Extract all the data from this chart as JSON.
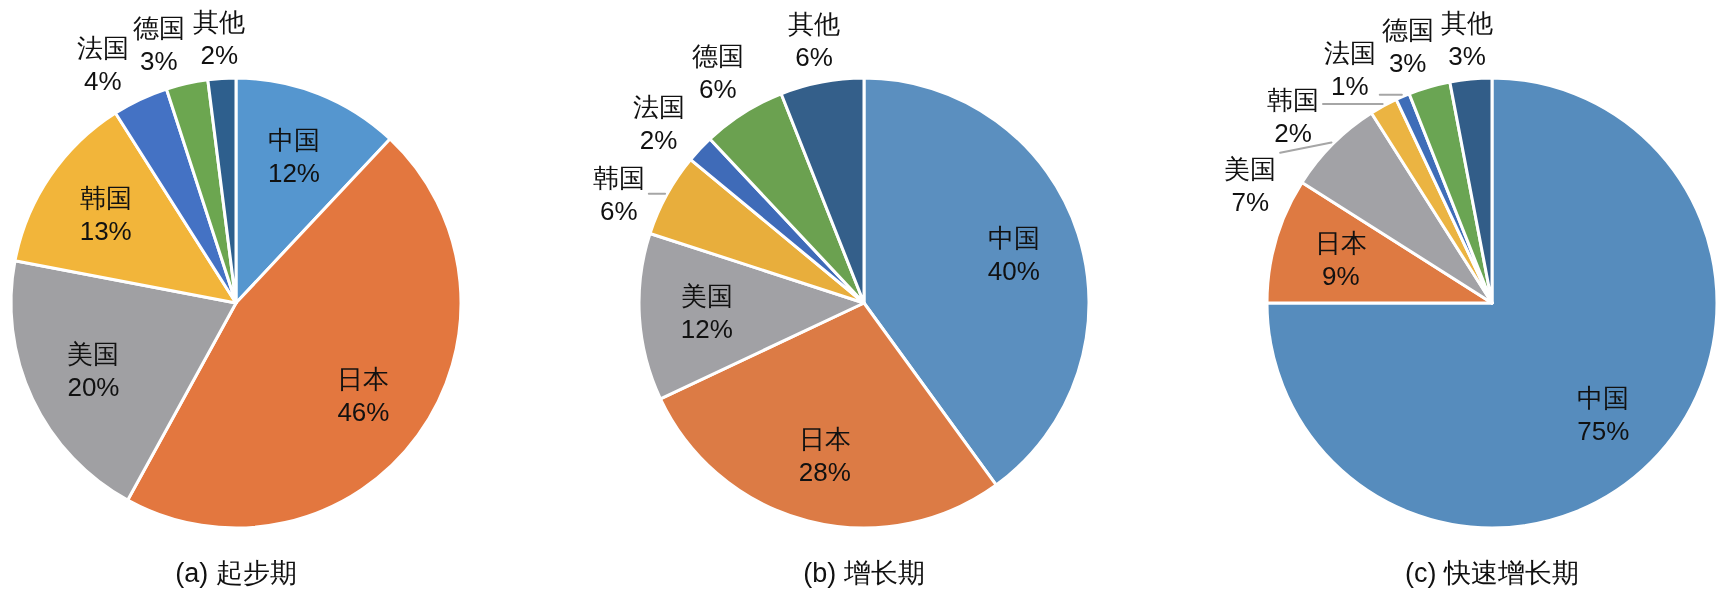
{
  "chart_data": [
    {
      "type": "pie",
      "title": "(a) 起步期",
      "categories": [
        "中国",
        "日本",
        "美国",
        "韩国",
        "法国",
        "德国",
        "其他"
      ],
      "values": [
        12,
        46,
        20,
        13,
        4,
        3,
        2
      ],
      "value_labels": [
        "12%",
        "46%",
        "20%",
        "13%",
        "4%",
        "3%",
        "2%"
      ],
      "colors": [
        "#5596cf",
        "#e3773f",
        "#a0a0a3",
        "#f2b53a",
        "#4472c4",
        "#6ca650",
        "#2e5f8d"
      ]
    },
    {
      "type": "pie",
      "title": "(b) 增长期",
      "categories": [
        "中国",
        "日本",
        "美国",
        "韩国",
        "法国",
        "德国",
        "其他"
      ],
      "values": [
        40,
        28,
        12,
        6,
        2,
        6,
        6
      ],
      "value_labels": [
        "40%",
        "28%",
        "12%",
        "6%",
        "2%",
        "6%",
        "6%"
      ],
      "colors": [
        "#5b8fbf",
        "#dc7b45",
        "#a1a1a5",
        "#e8ae3c",
        "#3f6bb8",
        "#6ba150",
        "#345f8a"
      ]
    },
    {
      "type": "pie",
      "title": "(c) 快速增长期",
      "categories": [
        "中国",
        "日本",
        "美国",
        "韩国",
        "法国",
        "德国",
        "其他"
      ],
      "values": [
        75,
        9,
        7,
        2,
        1,
        3,
        3
      ],
      "value_labels": [
        "75%",
        "9%",
        "7%",
        "2%",
        "1%",
        "3%",
        "3%"
      ],
      "colors": [
        "#568cbd",
        "#de7a42",
        "#a2a2a6",
        "#ebb442",
        "#3e6db8",
        "#6aa553",
        "#325d88"
      ]
    }
  ]
}
